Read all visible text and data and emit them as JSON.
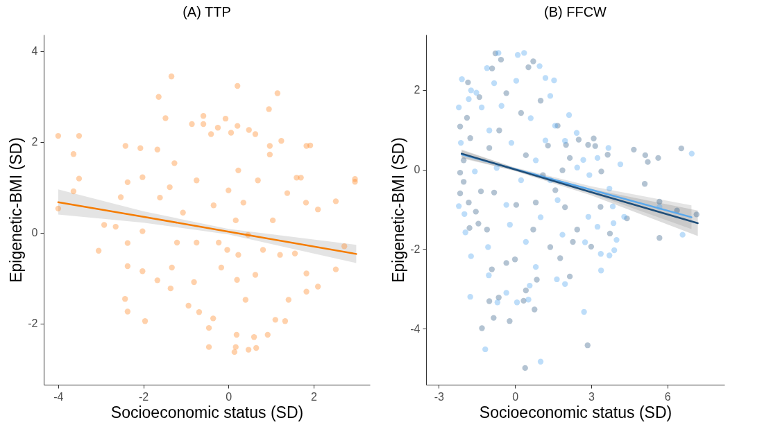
{
  "chart_data": [
    {
      "type": "scatter",
      "title": "(A) TTP",
      "xlabel": "Socioeconomic status (SD)",
      "ylabel": "Epigenetic-BMI (SD)",
      "xlim": [
        -4.34,
        3.32
      ],
      "ylim": [
        -3.35,
        4.36
      ],
      "xticks": [
        -4,
        -2,
        0,
        2
      ],
      "yticks": [
        -2,
        0,
        2,
        4
      ],
      "marker": "circle",
      "series": [
        {
          "color": "#ff8c2e",
          "x": [
            -4,
            -3.51,
            -3.64,
            -3.51,
            -3.64,
            -4,
            -3.05,
            -2.92,
            -2.65,
            -2.53,
            -2.42,
            -2.37,
            -2.37,
            -2.37,
            -2.43,
            -2.37,
            -2.07,
            -2.02,
            -2.02,
            -2.02,
            -1.96,
            -1.64,
            -1.67,
            -1.61,
            -1.67,
            -1.48,
            -1.34,
            -1.38,
            -1.27,
            -1.33,
            -1.36,
            -1.21,
            -1.07,
            -0.94,
            -0.86,
            -0.59,
            -0.59,
            -0.75,
            -0.75,
            -0.81,
            -0.69,
            -0.41,
            -0.35,
            -0.46,
            -0.46,
            -0.36,
            -0.25,
            -0.07,
            -0.23,
            -0.17,
            0,
            -0.03,
            0.06,
            0.21,
            0.21,
            0.23,
            0.17,
            0.23,
            0.2,
            0.14,
            0.17,
            0.19,
            0.35,
            0.46,
            0.4,
            0.47,
            0.48,
            0.63,
            0.6,
            0.65,
            0.63,
            0.69,
            0.81,
            0.95,
            0.97,
            0.97,
            1.15,
            0.92,
            1.1,
            1.04,
            1.24,
            1.21,
            1.33,
            1.38,
            1.41,
            1.56,
            1.6,
            1.7,
            1.83,
            1.92,
            1.82,
            1.83,
            1.83,
            2.1,
            2.1,
            2.52,
            2.52,
            2.72,
            2.97,
            2.97
          ],
          "values": [
            2.13,
            2.13,
            1.73,
            1.19,
            0.91,
            0.53,
            -0.4,
            0.17,
            0.13,
            0.78,
            1.91,
            1.11,
            -0.23,
            -0.74,
            -1.46,
            -1.74,
            1.86,
            1.22,
            0.03,
            -0.85,
            -1.95,
            2.99,
            1.83,
            0.77,
            -1.05,
            2.52,
            3.44,
            1.0,
            1.53,
            -0.77,
            -1.23,
            -0.22,
            0.44,
            -1.61,
            2.39,
            2.39,
            2.57,
            1.15,
            -0.22,
            -1.09,
            -1.75,
            2.17,
            0.6,
            -2.1,
            -2.52,
            -1.89,
            2.31,
            2.51,
            -0.22,
            -0.77,
            0.93,
            -0.38,
            2.2,
            3.23,
            2.35,
            1.37,
            0.27,
            -0.49,
            -1.04,
            -2.63,
            -2.52,
            -2.25,
            0.66,
            -0.05,
            -1.48,
            -2.58,
            2.26,
            2.17,
            -2.3,
            -2.54,
            -0.93,
            1.15,
            -0.38,
            2.72,
            1.91,
            1.72,
            3.07,
            -2.25,
            -1.92,
            0.27,
            2.02,
            -0.49,
            -1.95,
            0.87,
            -1.48,
            -0.46,
            1.21,
            1.21,
            1.91,
            1.92,
            0.66,
            -0.9,
            -1.3,
            0.51,
            -1.19,
            0.69,
            -0.81,
            -0.3,
            1.18,
            1.12
          ]
        },
        {
          "type": "line",
          "color": "#f57c00",
          "x": [
            -4,
            -2,
            0,
            3
          ],
          "marker": "none",
          "values": [
            0.67,
            0.35,
            0.02,
            -0.47
          ],
          "lower": [
            0.4,
            0.22,
            -0.04,
            -0.67
          ],
          "upper": [
            0.95,
            0.47,
            0.08,
            -0.27
          ]
        }
      ]
    },
    {
      "type": "scatter",
      "title": "(B) FFCW",
      "xlabel": "Socioeconomic status (SD)",
      "ylabel": "Epigenetic-BMI (SD)",
      "xlim": [
        -3.5,
        8.25
      ],
      "ylim": [
        -5.41,
        3.39
      ],
      "xticks": [
        -3,
        0,
        3,
        6
      ],
      "yticks": [
        -4,
        -2,
        0,
        2
      ],
      "marker": "circle",
      "series": [
        {
          "color": "#40698f",
          "x": [
            -1.3,
            -0.84,
            -0.21,
            0.4,
            2.86,
            0.77,
            0.86,
            0.34,
            2.16,
            1.78,
            3.0,
            3.74,
            4.41,
            5.69,
            7.15,
            6.38,
            5.69,
            5.11,
            5.23,
            5.13,
            5.64,
            6.55,
            4.68,
            3.65,
            3.1,
            3.16,
            2.88,
            3.4,
            3.37,
            2.51,
            2.01,
            0.53,
            0.72,
            -0.55,
            -0.77,
            -0.9,
            -1.85,
            -1.4,
            -2.16,
            -1.89,
            -1.76,
            -2.02,
            -2.16,
            -2.02,
            -2.16,
            -1.82,
            -1.79,
            -1.44,
            -1.54,
            -1.34,
            -1.1,
            -1.01,
            -0.64,
            -0.34,
            -0.82,
            -0.62,
            -0.34,
            0.05,
            0.24,
            0.43,
            0.72,
            0.82,
            1.01,
            1.1,
            1.3,
            1.39,
            1.59,
            1.68,
            1.97,
            2.16,
            2.28,
            2.45,
            1.87,
            -1.01,
            -0.91,
            0,
            0.43
          ],
          "values": [
            -3.99,
            -3.73,
            -3.81,
            -4.99,
            -4.42,
            -3.52,
            -2.77,
            -3.3,
            -2.69,
            -2.23,
            -1.94,
            -1.61,
            -1.23,
            -1.72,
            -1.13,
            -1.03,
            -0.81,
            -0.36,
            0.19,
            0.36,
            0.29,
            0.53,
            0.5,
            0.37,
            0.78,
            0.59,
            0.62,
            -0.05,
            -0.94,
            0.75,
            0.62,
            2.57,
            2.72,
            2.76,
            2.92,
            2.54,
            2.19,
            1.82,
            1.08,
            1.3,
            0.79,
            0.23,
            -0.08,
            -0.31,
            -0.6,
            -0.83,
            -1.47,
            -1.36,
            -1.06,
            -0.55,
            -1.51,
            -3.31,
            -3.22,
            -2.35,
            -0.58,
            0.98,
            1.92,
            -0.89,
            1.42,
            0.36,
            -1.51,
            -0.83,
            1.73,
            -0.14,
            0.6,
            -1.95,
            -0.52,
            1.1,
            -0.95,
            0.29,
            -1.82,
            -1.51,
            -0.02,
            0.54,
            -2.51,
            -2.26,
            -3.04
          ]
        },
        {
          "color": "#5aaaf0",
          "x": [
            -1.17,
            1.01,
            2.72,
            -1.76,
            -1.73,
            -1.95,
            -2.21,
            -1.99,
            -2.21,
            -2.09,
            -1.73,
            -1.52,
            -1.82,
            -1.31,
            -2.13,
            -1.58,
            -1.1,
            -0.65,
            0.11,
            0.36,
            0.97,
            1.54,
            1.2,
            1.39,
            2.13,
            2.43,
            1.58,
            1.97,
            2.45,
            2.69,
            2.93,
            3.68,
            3.25,
            4.15,
            3.72,
            3.85,
            3.88,
            4.0,
            3.91,
            3.72,
            3.38,
            3.39,
            3.25,
            2.89,
            2.76,
            1.97,
            1.65,
            0.82,
            0.58,
            0.53,
            0.08,
            -0.34,
            -0.69,
            -1.03,
            -1.06,
            4.3,
            6.6,
            6.96,
            5.69,
            -1.01,
            -0.72,
            -0.53,
            -0.34,
            -0.14,
            0.05,
            0.24,
            0.43,
            0.62,
            0.82,
            1.01,
            1.2,
            1.39,
            1.68,
            1.87,
            -0.82,
            -0.2
          ],
          "values": [
            -4.52,
            -4.83,
            -3.58,
            -3.2,
            -2.18,
            -1.58,
            -0.92,
            -1.12,
            1.56,
            2.27,
            1.99,
            1.93,
            1.77,
            1.56,
            0.67,
            -0.05,
            2.55,
            2.93,
            2.88,
            2.93,
            2.6,
            2.24,
            2.3,
            1.85,
            1.37,
            0.92,
            1.1,
            0.72,
            0.05,
            0.24,
            -0.14,
            0.54,
            0.29,
            0.13,
            -0.48,
            -0.93,
            -1.35,
            -1.77,
            -2.03,
            -2.16,
            -2.12,
            -2.54,
            -1.44,
            -1.19,
            -1.83,
            -2.88,
            -2.76,
            -2.45,
            -2.92,
            -3.27,
            -3.34,
            -3.1,
            -3.34,
            -2.66,
            -1.95,
            -1.19,
            -1.64,
            0.4,
            -0.94,
            0.98,
            0.04,
            1.6,
            -0.89,
            0.67,
            2.23,
            -0.27,
            -1.82,
            1.29,
            0.23,
            -1.2,
            0.73,
            -0.27,
            -0.77,
            -1.64,
            2.17,
            -1.39
          ]
        },
        {
          "type": "line",
          "marker": "none",
          "color": "#5aa9ed",
          "x": [
            -2.1,
            0,
            3,
            6.95
          ],
          "values": [
            0.38,
            0.01,
            -0.51,
            -1.2
          ],
          "lower": [
            0.28,
            -0.03,
            -0.6,
            -1.5
          ],
          "upper": [
            0.48,
            0.05,
            -0.42,
            -0.9
          ]
        },
        {
          "type": "line",
          "marker": "none",
          "color": "#1f4e79",
          "x": [
            -2.1,
            0,
            3,
            7.2
          ],
          "values": [
            0.4,
            0,
            -0.57,
            -1.35
          ],
          "lower": [
            0.3,
            -0.04,
            -0.65,
            -1.67
          ],
          "upper": [
            0.5,
            0.04,
            -0.49,
            -1.03
          ]
        }
      ]
    }
  ]
}
